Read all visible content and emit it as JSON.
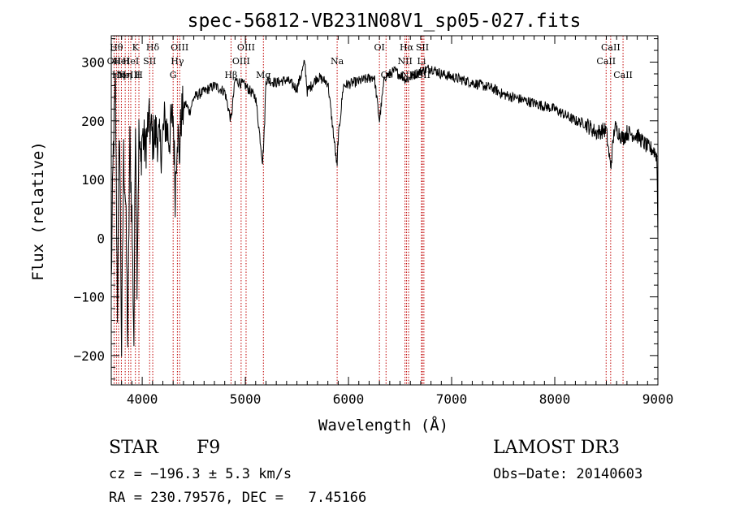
{
  "chart_data": {
    "type": "line",
    "title": "spec-56812-VB231N08V1_sp05-027.fits",
    "xlabel": "Wavelength (Å)",
    "ylabel": "Flux (relative)",
    "xlim": [
      3700,
      9000
    ],
    "ylim": [
      -250,
      345
    ],
    "xticks": [
      4000,
      5000,
      6000,
      7000,
      8000,
      9000
    ],
    "xtick_labels": [
      "4000",
      "5000",
      "6000",
      "7000",
      "8000",
      "9000"
    ],
    "yticks": [
      -200,
      -100,
      0,
      100,
      200,
      300
    ],
    "ytick_labels": [
      "−200",
      "−100",
      "0",
      "100",
      "200",
      "300"
    ],
    "grid": false,
    "line_color": "#000000",
    "marker_line_color": "#c00000",
    "series": [
      {
        "x": [
          3700,
          3720,
          3740,
          3760,
          3780,
          3800,
          3820,
          3840,
          3860,
          3880,
          3900,
          3920,
          3935,
          3950,
          3968,
          3985,
          4000,
          4030,
          4060,
          4101,
          4140,
          4180,
          4220,
          4260,
          4300,
          4320,
          4340,
          4360,
          4380,
          4420,
          4460,
          4500,
          4600,
          4700,
          4800,
          4861,
          4900,
          5000,
          5100,
          5167,
          5183,
          5200,
          5300,
          5400,
          5500,
          5577,
          5600,
          5700,
          5800,
          5890,
          5896,
          5950,
          6050,
          6150,
          6250,
          6300,
          6350,
          6450,
          6563,
          6650,
          6710,
          6800,
          6900,
          7000,
          7100,
          7200,
          7300,
          7400,
          7500,
          7600,
          7700,
          7800,
          7900,
          8000,
          8100,
          8200,
          8300,
          8400,
          8498,
          8542,
          8580,
          8662,
          8700,
          8800,
          8900,
          8960,
          8990,
          9000
        ],
        "y": [
          -80,
          150,
          260,
          -120,
          200,
          -190,
          140,
          60,
          -180,
          160,
          40,
          -175,
          230,
          -60,
          175,
          120,
          180,
          150,
          200,
          170,
          180,
          150,
          200,
          170,
          210,
          80,
          190,
          140,
          210,
          230,
          215,
          240,
          250,
          260,
          250,
          200,
          270,
          260,
          240,
          130,
          180,
          270,
          265,
          270,
          255,
          300,
          250,
          275,
          265,
          120,
          160,
          260,
          265,
          270,
          275,
          200,
          275,
          285,
          270,
          280,
          285,
          290,
          280,
          275,
          270,
          265,
          260,
          255,
          245,
          240,
          235,
          230,
          225,
          220,
          210,
          200,
          195,
          180,
          185,
          120,
          190,
          170,
          180,
          175,
          155,
          150,
          140,
          0
        ]
      }
    ],
    "lines": [
      {
        "x": 3727,
        "label": "OII",
        "row": 2
      },
      {
        "x": 3750,
        "label": "Hθ",
        "row": 1
      },
      {
        "x": 3771,
        "label": "Hη",
        "row": 3
      },
      {
        "x": 3798,
        "label": "HeI",
        "row": 2
      },
      {
        "x": 3835,
        "label": "Hη",
        "row": 3
      },
      {
        "x": 3869,
        "label": "NeIII",
        "row": 3
      },
      {
        "x": 3889,
        "label": "HeI",
        "row": 2
      },
      {
        "x": 3934,
        "label": "K",
        "row": 1
      },
      {
        "x": 3968,
        "label": "H",
        "row": 3
      },
      {
        "x": 4072,
        "label": "SII",
        "row": 2
      },
      {
        "x": 4102,
        "label": "Hδ",
        "row": 1
      },
      {
        "x": 4300,
        "label": "G",
        "row": 3
      },
      {
        "x": 4341,
        "label": "Hγ",
        "row": 2
      },
      {
        "x": 4363,
        "label": "OIII",
        "row": 1
      },
      {
        "x": 4861,
        "label": "Hβ",
        "row": 3
      },
      {
        "x": 4959,
        "label": "OIII",
        "row": 2
      },
      {
        "x": 5007,
        "label": "OIII",
        "row": 1
      },
      {
        "x": 5175,
        "label": "Mg",
        "row": 3
      },
      {
        "x": 5890,
        "label": "Na",
        "row": 2
      },
      {
        "x": 6300,
        "label": "OI",
        "row": 1
      },
      {
        "x": 6364,
        "label": "OI",
        "row": 3
      },
      {
        "x": 6548,
        "label": "NII",
        "row": 2
      },
      {
        "x": 6563,
        "label": "Hα",
        "row": 1
      },
      {
        "x": 6583,
        "label": "NII",
        "row": 3
      },
      {
        "x": 6708,
        "label": "Li",
        "row": 2
      },
      {
        "x": 6716,
        "label": "SII",
        "row": 1
      },
      {
        "x": 6731,
        "label": "SII",
        "row": 3
      },
      {
        "x": 8498,
        "label": "CaII",
        "row": 2
      },
      {
        "x": 8542,
        "label": "CaII",
        "row": 1
      },
      {
        "x": 8662,
        "label": "CaII",
        "row": 3
      }
    ]
  },
  "footer": {
    "object_class": "STAR",
    "subclass": "F9",
    "survey": "LAMOST DR3",
    "cz": "cz = −196.3 ± 5.3 km/s",
    "obs_date": "Obs−Date: 20140603",
    "coords": "RA = 230.79576, DEC =   7.45166"
  }
}
